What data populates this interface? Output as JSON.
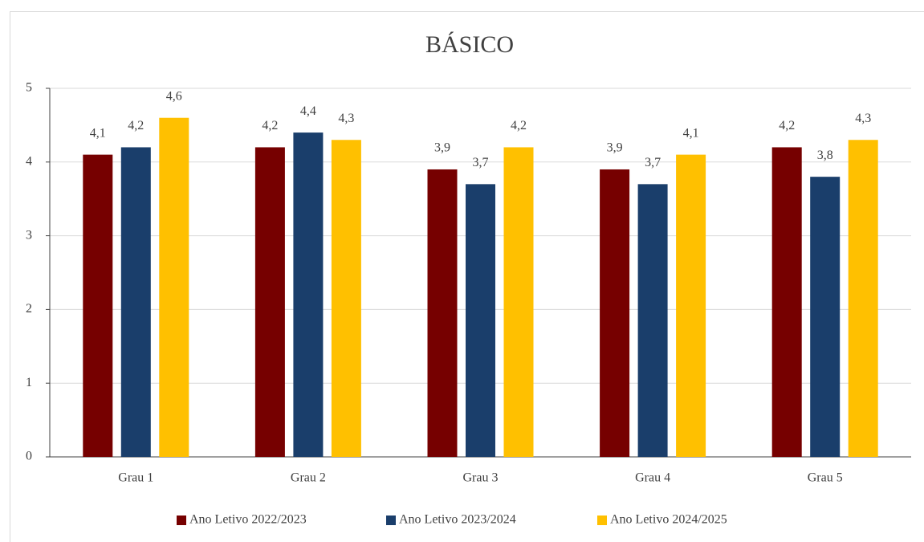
{
  "chart_data": {
    "type": "bar",
    "title": "BÁSICO",
    "categories": [
      "Grau 1",
      "Grau 2",
      "Grau 3",
      "Grau 4",
      "Grau 5"
    ],
    "series": [
      {
        "name": "Ano Letivo 2022/2023",
        "color": "#760000",
        "values": [
          4.1,
          4.2,
          3.9,
          3.9,
          4.2
        ],
        "value_labels": [
          "4,1",
          "4,2",
          "3,9",
          "3,9",
          "4,2"
        ]
      },
      {
        "name": "Ano Letivo 2023/2024",
        "color": "#1a3e6b",
        "values": [
          4.2,
          4.4,
          3.7,
          3.7,
          3.8
        ],
        "value_labels": [
          "4,2",
          "4,4",
          "3,7",
          "3,7",
          "3,8"
        ]
      },
      {
        "name": "Ano Letivo 2024/2025",
        "color": "#ffc000",
        "values": [
          4.6,
          4.3,
          4.2,
          4.1,
          4.3
        ],
        "value_labels": [
          "4,6",
          "4,3",
          "4,2",
          "4,1",
          "4,3"
        ]
      }
    ],
    "ylim": [
      0,
      5
    ],
    "yticks": [
      0,
      1,
      2,
      3,
      4,
      5
    ],
    "grid": true,
    "legend": "bottom"
  }
}
